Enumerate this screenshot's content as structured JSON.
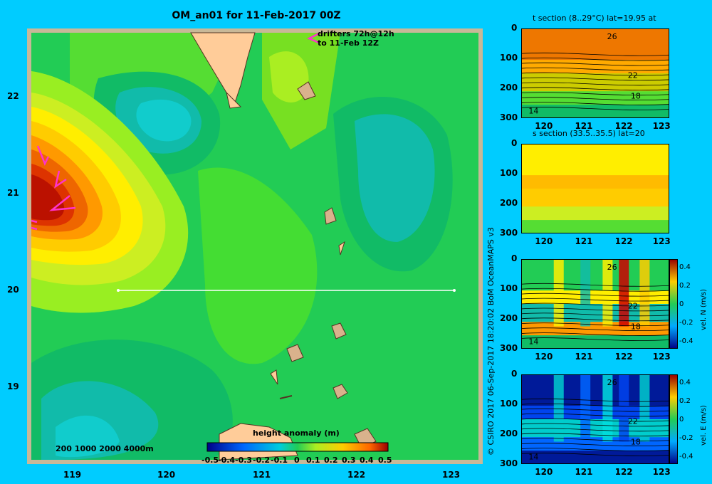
{
  "title": "OM_an01 for 11-Feb-2017 00Z",
  "drifters_line1": "drifters 72h@12h",
  "drifters_line2": "to 11-Feb 12Z",
  "depth_legend": "200  1000  2000  4000m",
  "map": {
    "lat_ticks": [
      "22",
      "21",
      "20",
      "19"
    ],
    "lon_ticks": [
      "119",
      "120",
      "121",
      "122",
      "123"
    ],
    "colorbar": {
      "label": "height anomaly (m)",
      "ticks": [
        "-0.5",
        "-0.4",
        "-0.3",
        "-0.2",
        "-0.1",
        "0",
        "0.1",
        "0.2",
        "0.3",
        "0.4",
        "0.5"
      ]
    }
  },
  "panels": [
    {
      "title": "t section (8..29°C) lat=19.95 at",
      "contour_labels": [
        "26",
        "22",
        "18",
        "14"
      ],
      "colorbar": null
    },
    {
      "title": "s section (33.5..35.5) lat=20",
      "contour_labels": [],
      "colorbar": null
    },
    {
      "title": "",
      "contour_labels": [
        "26",
        "22",
        "18",
        "14"
      ],
      "colorbar": {
        "label": "vel. N (m/s)",
        "ticks": [
          "0.4",
          "0.2",
          "0",
          "-0.2",
          "-0.4"
        ]
      }
    },
    {
      "title": "",
      "contour_labels": [
        "26",
        "22",
        "18",
        "14"
      ],
      "colorbar": {
        "label": "vel. E (m/s)",
        "ticks": [
          "0.4",
          "0.2",
          "0",
          "-0.2",
          "-0.4"
        ]
      }
    }
  ],
  "panel_axes": {
    "depth_ticks": [
      "0",
      "100",
      "200",
      "300"
    ],
    "lon_ticks": [
      "120",
      "121",
      "122",
      "123"
    ]
  },
  "credit": "© CSIRO 2017   06-Sep-2017 18:20:02 BoM OceanMAPS v3",
  "colors": {
    "background": "#00ccff",
    "land": "#ffcc99",
    "section_line": "#ffffff",
    "drifter": "#ff33cc"
  }
}
